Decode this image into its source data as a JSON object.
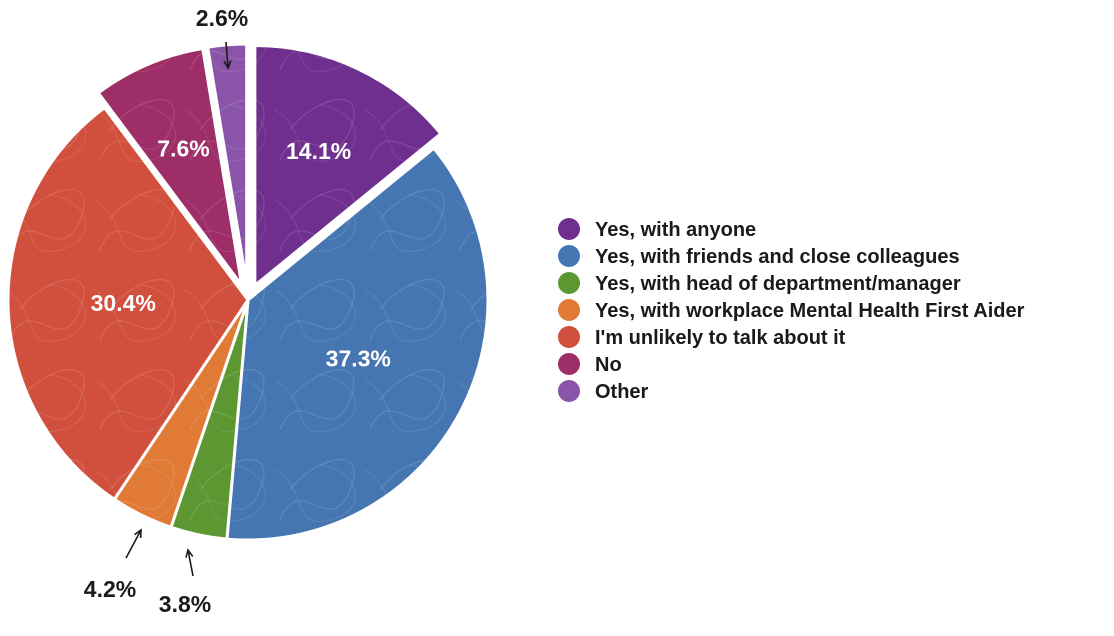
{
  "chart_data": {
    "type": "pie",
    "title": "",
    "slices": [
      {
        "label": "Yes, with anyone",
        "value": 14.1,
        "display": "14.1%",
        "color": "#6f2f8f",
        "exploded": true,
        "label_inside": true
      },
      {
        "label": "Yes, with friends and close colleagues",
        "value": 37.3,
        "display": "37.3%",
        "color": "#4676b1",
        "exploded": false,
        "label_inside": true
      },
      {
        "label": "Yes, with head of department/manager",
        "value": 3.8,
        "display": "3.8%",
        "color": "#5c9732",
        "exploded": false,
        "label_inside": false
      },
      {
        "label": "Yes, with workplace Mental Health First Aider",
        "value": 4.2,
        "display": "4.2%",
        "color": "#e07a35",
        "exploded": false,
        "label_inside": false
      },
      {
        "label": "I'm unlikely to talk about it",
        "value": 30.4,
        "display": "30.4%",
        "color": "#d1503d",
        "exploded": false,
        "label_inside": true
      },
      {
        "label": "No",
        "value": 7.6,
        "display": "7.6%",
        "color": "#9d2e67",
        "exploded": true,
        "label_inside": true
      },
      {
        "label": "Other",
        "value": 2.6,
        "display": "2.6%",
        "color": "#8a55a8",
        "exploded": true,
        "label_inside": false
      }
    ],
    "legend_position": "right",
    "start_angle": "top, clockwise"
  }
}
